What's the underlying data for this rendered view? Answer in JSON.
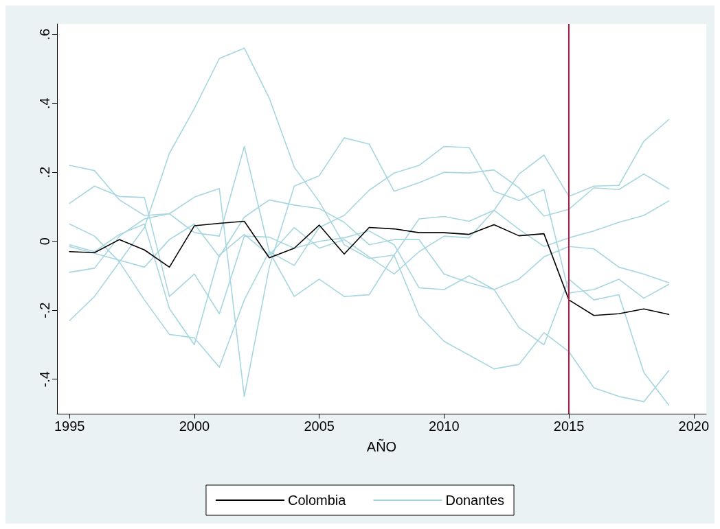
{
  "chart_data": {
    "type": "line",
    "xlabel": "AÑO",
    "x": [
      1995,
      1996,
      1997,
      1998,
      1999,
      2000,
      2001,
      2002,
      2003,
      2004,
      2005,
      2006,
      2007,
      2008,
      2009,
      2010,
      2011,
      2012,
      2013,
      2014,
      2015,
      2016,
      2017,
      2018,
      2019
    ],
    "xlim": [
      1994.5,
      2020.5
    ],
    "xticks": [
      1995,
      2000,
      2005,
      2010,
      2015,
      2020
    ],
    "ylim": [
      -0.5,
      0.63
    ],
    "yticks": [
      {
        "value": -0.4,
        "label": "-.4"
      },
      {
        "value": -0.2,
        "label": "-.2"
      },
      {
        "value": 0,
        "label": "0"
      },
      {
        "value": 0.2,
        "label": ".2"
      },
      {
        "value": 0.4,
        "label": ".4"
      },
      {
        "value": 0.6,
        "label": ".6"
      }
    ],
    "grid": false,
    "legend": "bottom",
    "marker": "none",
    "line_style": "solid",
    "ref_lines": [
      {
        "axis": "x",
        "value": 2015,
        "color": "#c0143c"
      }
    ],
    "series": [
      {
        "name": "Donantes",
        "color": "#a6d6e0",
        "values": [
          -0.23,
          -0.16,
          -0.06,
          0.04,
          0.255,
          0.385,
          0.53,
          0.56,
          0.415,
          0.215,
          0.115,
          -0.01,
          -0.05,
          -0.04,
          -0.215,
          -0.29,
          -0.33,
          -0.37,
          -0.357,
          -0.265,
          -0.32,
          -0.425,
          -0.45,
          -0.465,
          -0.375
        ]
      },
      {
        "color": "#a6d6e0",
        "values": [
          0.22,
          0.205,
          0.12,
          0.075,
          0.08,
          0.025,
          0.015,
          0.275,
          -0.03,
          -0.16,
          -0.11,
          -0.16,
          -0.155,
          -0.04,
          0.065,
          0.072,
          0.058,
          0.09,
          0.035,
          -0.015,
          0.01,
          0.03,
          0.055,
          0.075,
          0.117
        ]
      },
      {
        "color": "#a6d6e0",
        "values": [
          0.11,
          0.16,
          0.13,
          0.127,
          -0.16,
          -0.095,
          -0.21,
          0.015,
          0.012,
          -0.02,
          0,
          0.01,
          0.03,
          -0.01,
          -0.135,
          -0.14,
          -0.1,
          -0.14,
          -0.11,
          -0.045,
          -0.015,
          -0.022,
          -0.075,
          -0.095,
          -0.12
        ]
      },
      {
        "color": "#a6d6e0",
        "values": [
          -0.09,
          -0.078,
          0.015,
          0.065,
          0.08,
          0.128,
          0.153,
          -0.45,
          -0.075,
          0.16,
          0.19,
          0.3,
          0.282,
          0.145,
          0.17,
          0.2,
          0.198,
          0.207,
          0.155,
          0.073,
          0.093,
          0.155,
          0.15,
          0.195,
          0.152
        ]
      },
      {
        "color": "#a6d6e0",
        "values": [
          -0.015,
          -0.035,
          -0.055,
          -0.075,
          0.005,
          0.05,
          -0.045,
          0.07,
          0.12,
          0.105,
          0.095,
          0.055,
          -0.01,
          0.005,
          0.005,
          -0.095,
          -0.12,
          -0.14,
          -0.25,
          -0.3,
          -0.11,
          -0.17,
          -0.155,
          -0.38,
          -0.475
        ]
      },
      {
        "color": "#a6d6e0",
        "values": [
          -0.01,
          -0.03,
          0.02,
          0.05,
          -0.195,
          -0.3,
          -0.04,
          0.02,
          -0.04,
          0.04,
          -0.02,
          0.005,
          -0.045,
          -0.095,
          -0.03,
          0.015,
          0.01,
          0.09,
          0.195,
          0.25,
          0.13,
          0.16,
          0.162,
          0.29,
          0.353
        ]
      },
      {
        "color": "#a6d6e0",
        "values": [
          0.05,
          0.015,
          -0.06,
          -0.17,
          -0.27,
          -0.28,
          -0.365,
          -0.17,
          -0.03,
          -0.07,
          0.04,
          0.075,
          0.148,
          0.198,
          0.22,
          0.275,
          0.272,
          0.145,
          0.118,
          0.15,
          -0.15,
          -0.14,
          -0.11,
          -0.165,
          -0.125
        ]
      },
      {
        "name": "Colombia",
        "color": "#000000",
        "values": [
          -0.03,
          -0.033,
          0.005,
          -0.025,
          -0.075,
          0.045,
          0.052,
          0.058,
          -0.048,
          -0.02,
          0.047,
          -0.037,
          0.04,
          0.036,
          0.025,
          0.025,
          0.02,
          0.048,
          0.016,
          0.022,
          -0.17,
          -0.215,
          -0.21,
          -0.196,
          -0.212
        ]
      }
    ]
  }
}
